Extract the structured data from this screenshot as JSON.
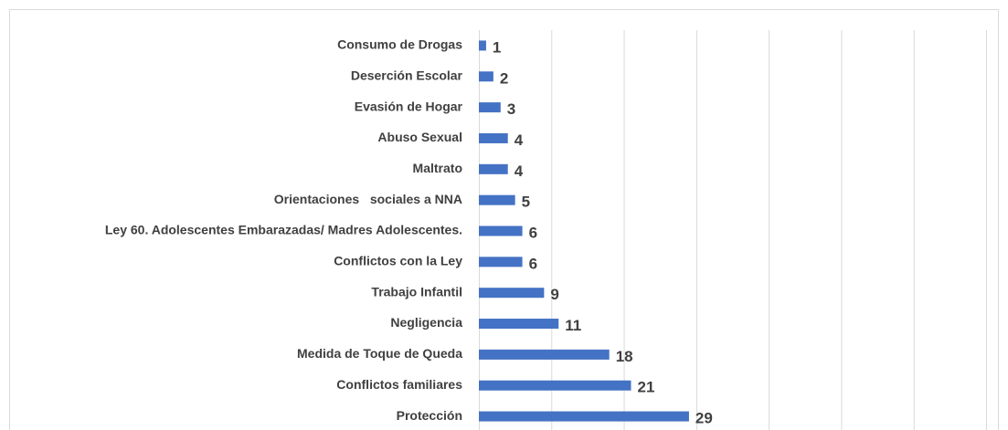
{
  "chart_data": {
    "type": "bar",
    "orientation": "horizontal",
    "categories": [
      "Consumo de Drogas",
      "Deserción Escolar",
      "Evasión de Hogar",
      "Abuso Sexual",
      "Maltrato",
      "Orientaciones   sociales a NNA",
      "Ley 60. Adolescentes Embarazadas/ Madres Adolescentes.",
      "Conflictos con la Ley",
      "Trabajo Infantil",
      "Negligencia",
      "Medida de Toque de Queda",
      "Conflictos familiares",
      "Protección"
    ],
    "values": [
      1,
      2,
      3,
      4,
      4,
      5,
      6,
      6,
      9,
      11,
      18,
      21,
      29
    ],
    "color": "#4472c4",
    "xlim": [
      0,
      70
    ],
    "xticks": [
      0,
      10,
      20,
      30,
      40,
      50,
      60,
      70
    ],
    "grid": true
  }
}
